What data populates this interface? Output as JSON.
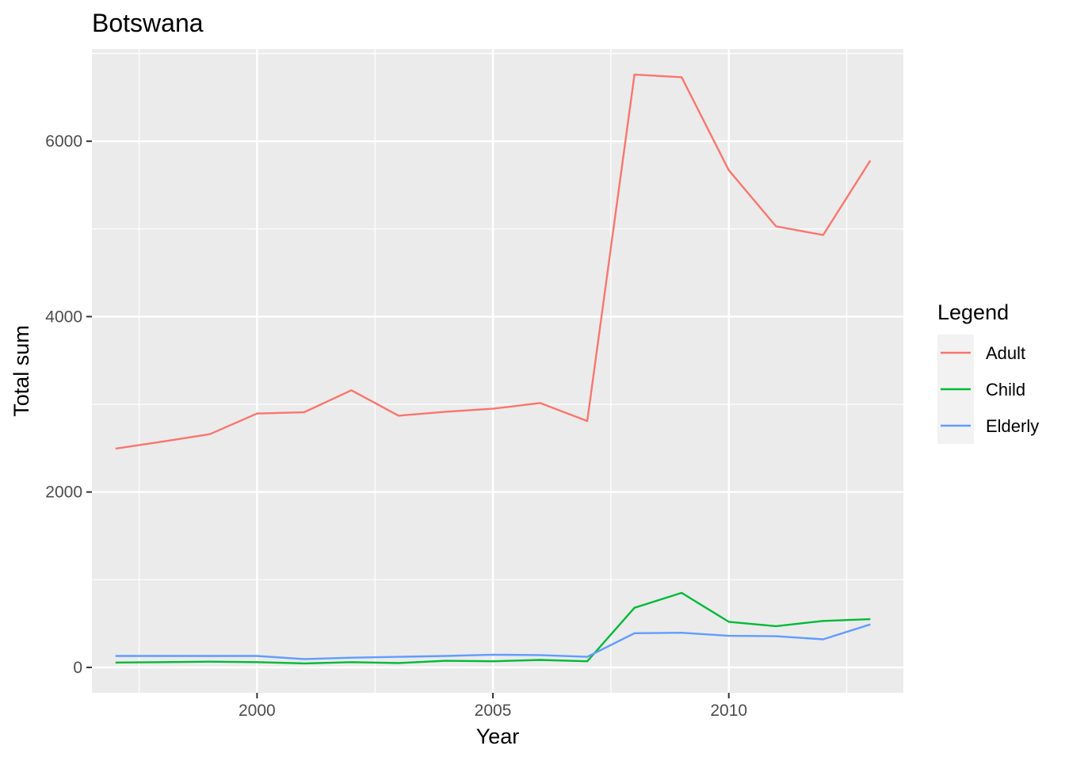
{
  "chart_data": {
    "type": "line",
    "title": "Botswana",
    "xlabel": "Year",
    "ylabel": "Total sum",
    "xlim": [
      1996.5,
      2013.7
    ],
    "ylim": [
      -290,
      7050
    ],
    "x_ticks": [
      2000,
      2005,
      2010
    ],
    "x_minor": [
      1997.5,
      2002.5,
      2007.5,
      2012.5
    ],
    "y_ticks": [
      0,
      2000,
      4000,
      6000
    ],
    "y_minor": [
      1000,
      3000,
      5000,
      7000
    ],
    "grid": true,
    "legend": {
      "title": "Legend",
      "position": "right"
    },
    "x": [
      1997,
      1998,
      1999,
      2000,
      2001,
      2002,
      2003,
      2004,
      2005,
      2006,
      2007,
      2008,
      2009,
      2010,
      2011,
      2012,
      2013
    ],
    "series": [
      {
        "name": "Adult",
        "color": "#F8766D",
        "values": [
          2495,
          2575,
          2660,
          2895,
          2910,
          3160,
          2870,
          2915,
          2950,
          3015,
          2810,
          6760,
          6730,
          5670,
          5030,
          4930,
          5780
        ]
      },
      {
        "name": "Child",
        "color": "#00BA38",
        "values": [
          55,
          60,
          65,
          60,
          45,
          60,
          50,
          75,
          70,
          85,
          70,
          680,
          850,
          520,
          470,
          530,
          550
        ]
      },
      {
        "name": "Elderly",
        "color": "#619CFF",
        "values": [
          130,
          130,
          130,
          130,
          95,
          110,
          120,
          130,
          145,
          140,
          120,
          390,
          395,
          360,
          355,
          320,
          490
        ]
      }
    ]
  }
}
